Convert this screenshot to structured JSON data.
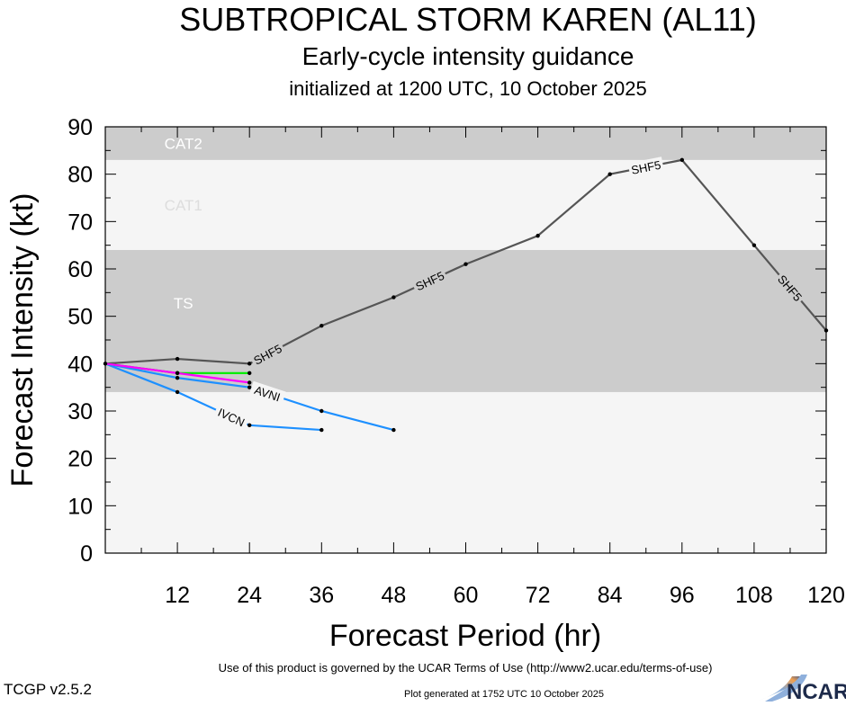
{
  "chart_data": {
    "type": "line",
    "title": "SUBTROPICAL STORM KAREN (AL11)",
    "subtitle": "Early-cycle intensity guidance",
    "subtitle2": "initialized at 1200 UTC, 10 October 2025",
    "xlabel": "Forecast Period (hr)",
    "ylabel": "Forecast Intensity (kt)",
    "xlim": [
      0,
      120
    ],
    "ylim": [
      0,
      90
    ],
    "xticks": [
      12,
      24,
      36,
      48,
      60,
      72,
      84,
      96,
      108,
      120
    ],
    "yticks": [
      0,
      10,
      20,
      30,
      40,
      50,
      60,
      70,
      80,
      90
    ],
    "bands": [
      {
        "label": "TS",
        "from": 34,
        "to": 64,
        "color": "#cccccc"
      },
      {
        "label": "CAT1",
        "from": 64,
        "to": 83,
        "color": "#f5f5f5"
      },
      {
        "label": "CAT2",
        "from": 83,
        "to": 90,
        "color": "#cccccc"
      }
    ],
    "series": [
      {
        "name": "SHF5",
        "color": "#555555",
        "x": [
          0,
          12,
          24,
          36,
          48,
          60,
          72,
          84,
          96,
          108,
          120
        ],
        "y": [
          40,
          41,
          40,
          48,
          54,
          61,
          67,
          80,
          83,
          65,
          47
        ]
      },
      {
        "name": "",
        "color": "#00ee00",
        "x": [
          0,
          12,
          24
        ],
        "y": [
          40,
          38,
          38
        ]
      },
      {
        "name": "",
        "color": "#ff00ff",
        "x": [
          0,
          12,
          24
        ],
        "y": [
          40,
          38,
          36
        ]
      },
      {
        "name": "AVNI",
        "color": "#1e90ff",
        "x": [
          0,
          12,
          24,
          36,
          48
        ],
        "y": [
          40,
          37,
          35,
          30,
          26
        ]
      },
      {
        "name": "IVCN",
        "color": "#1e90ff",
        "x": [
          0,
          12,
          24,
          36
        ],
        "y": [
          40,
          34,
          27,
          26
        ]
      }
    ]
  },
  "footer": {
    "version": "TCGP v2.5.2",
    "terms": "Use of this product is governed by the UCAR Terms of Use (http://www2.ucar.edu/terms-of-use)",
    "generated": "Plot generated at 1752 UTC   10 October 2025",
    "logo": "NCAR"
  }
}
